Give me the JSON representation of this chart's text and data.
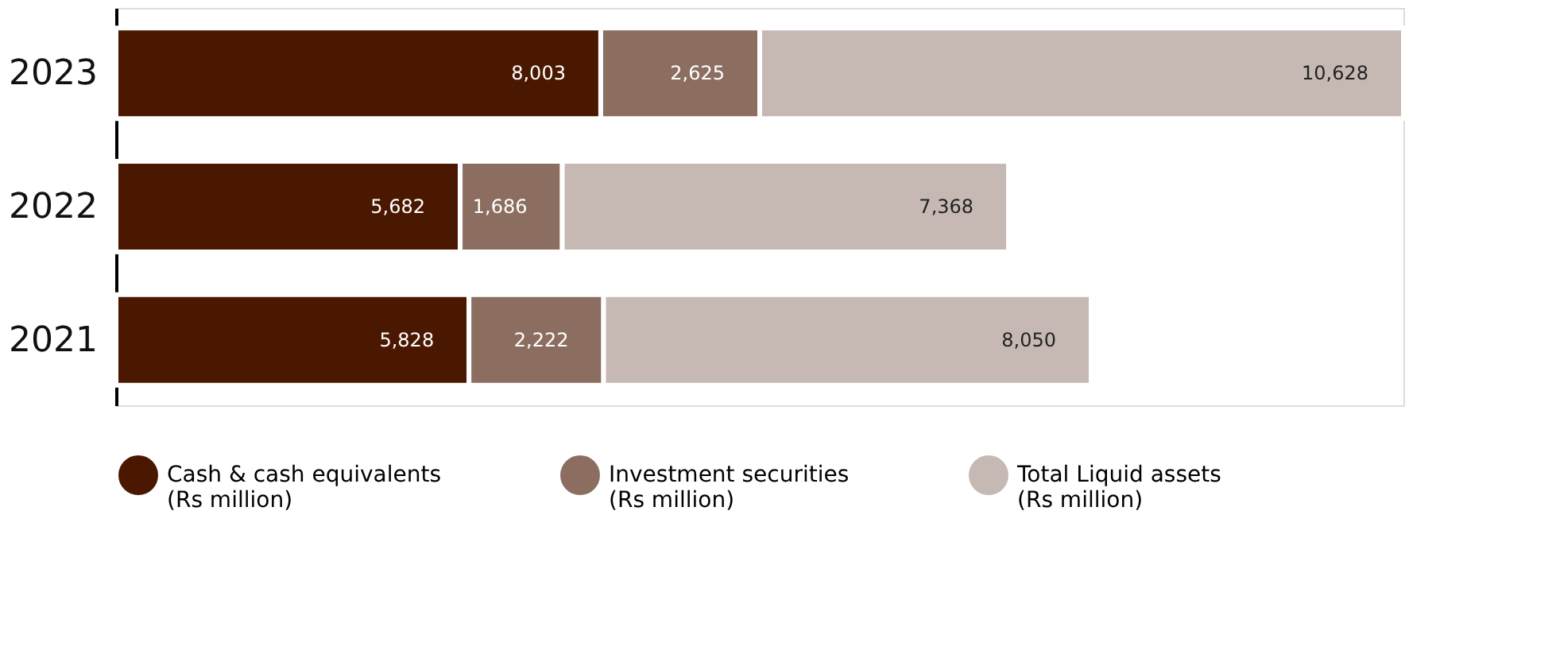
{
  "chart_data": {
    "type": "bar",
    "orientation": "horizontal",
    "stacked": true,
    "legend": "bottom",
    "tick_labels": "y",
    "categories": [
      "2023",
      "2022",
      "2021"
    ],
    "series": [
      {
        "name": "Cash & cash equivalents (Rs million)",
        "color": "#4a1800",
        "values": [
          8003,
          5682,
          5828
        ],
        "value_labels": [
          "8,003",
          "5,682",
          "5,828"
        ]
      },
      {
        "name": "Investment securities (Rs million)",
        "color": "#8c6e60",
        "values": [
          2625,
          1686,
          2222
        ],
        "value_labels": [
          "2,625",
          "1,686",
          "2,222"
        ]
      },
      {
        "name": "Total Liquid assets (Rs million)",
        "color": "#c6b8b3",
        "values": [
          10628,
          7368,
          8050
        ],
        "value_labels": [
          "10,628",
          "7,368",
          "8,050"
        ]
      }
    ]
  }
}
